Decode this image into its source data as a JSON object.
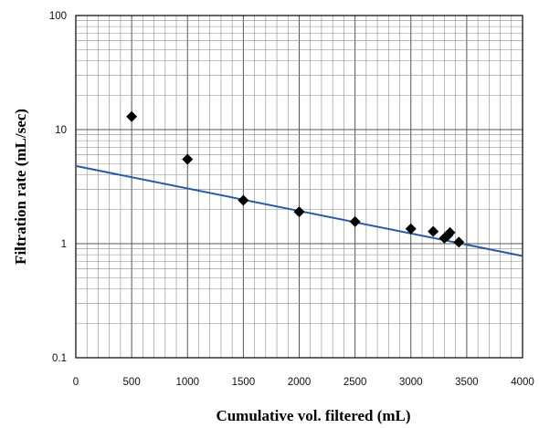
{
  "chart_data": {
    "type": "scatter",
    "title": "",
    "xlabel": "Cumulative vol. filtered (mL)",
    "ylabel": "Filtration rate (mL/sec)",
    "xlim": [
      0,
      4000
    ],
    "ylim": [
      0.1,
      100
    ],
    "yscale": "log",
    "grid": true,
    "x_ticks": [
      "0",
      "500",
      "1000",
      "1500",
      "2000",
      "2500",
      "3000",
      "3500",
      "4000"
    ],
    "y_ticks": [
      "0.1",
      "1",
      "10",
      "100"
    ],
    "points": [
      {
        "x": 500,
        "y": 13
      },
      {
        "x": 1000,
        "y": 5.5
      },
      {
        "x": 1500,
        "y": 2.4
      },
      {
        "x": 2000,
        "y": 1.9
      },
      {
        "x": 2500,
        "y": 1.56
      },
      {
        "x": 3000,
        "y": 1.35
      },
      {
        "x": 3200,
        "y": 1.28
      },
      {
        "x": 3300,
        "y": 1.12
      },
      {
        "x": 3330,
        "y": 1.18
      },
      {
        "x": 3350,
        "y": 1.25
      },
      {
        "x": 3430,
        "y": 1.03
      }
    ],
    "trendline": {
      "x": [
        0,
        4000
      ],
      "y": [
        4.8,
        0.78
      ]
    },
    "colors": {
      "markers": "#000000",
      "trendline": "#2a5aa0",
      "grid": "#8c8c8c"
    }
  }
}
